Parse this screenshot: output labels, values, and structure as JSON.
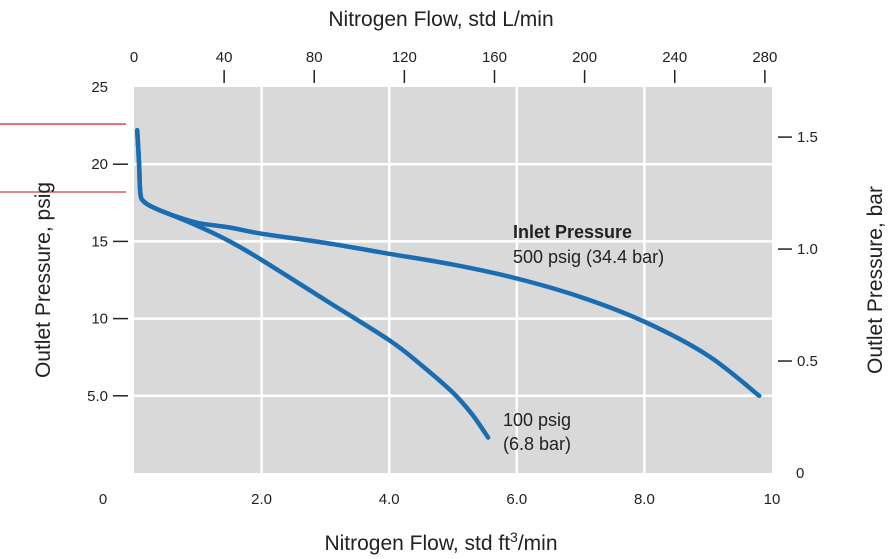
{
  "colors": {
    "plot_background": "#d9d9d9",
    "grid": "#ffffff",
    "curve": "#1b6db2",
    "annotation_line": "#d33a3a",
    "text": "#222222"
  },
  "chart_data": {
    "type": "line",
    "xlabel_bottom_prefix": "Nitrogen Flow, std ft",
    "xlabel_bottom_sup": "3",
    "xlabel_bottom_suffix": "/min",
    "xlabel_top": "Nitrogen Flow, std L/min",
    "ylabel_left": "Outlet Pressure, psig",
    "ylabel_right": "Outlet Pressure, bar",
    "xlim_bottom": [
      0,
      10
    ],
    "xlim_top": [
      0,
      283.17
    ],
    "ylim_left": [
      0,
      25
    ],
    "ylim_right": [
      0,
      1.7237
    ],
    "grid": true,
    "x_ticks_bottom": [
      {
        "value": 0,
        "label": "0"
      },
      {
        "value": 2,
        "label": "2.0"
      },
      {
        "value": 4,
        "label": "4.0"
      },
      {
        "value": 6,
        "label": "6.0"
      },
      {
        "value": 8,
        "label": "8.0"
      },
      {
        "value": 10,
        "label": "10"
      }
    ],
    "x_ticks_top": [
      {
        "value": 0,
        "label": "0"
      },
      {
        "value": 40,
        "label": "40"
      },
      {
        "value": 80,
        "label": "80"
      },
      {
        "value": 120,
        "label": "120"
      },
      {
        "value": 160,
        "label": "160"
      },
      {
        "value": 200,
        "label": "200"
      },
      {
        "value": 240,
        "label": "240"
      },
      {
        "value": 280,
        "label": "280"
      }
    ],
    "y_ticks_left": [
      {
        "value": 0,
        "label": "0"
      },
      {
        "value": 5,
        "label": "5.0"
      },
      {
        "value": 10,
        "label": "10"
      },
      {
        "value": 15,
        "label": "15"
      },
      {
        "value": 20,
        "label": "20"
      },
      {
        "value": 25,
        "label": "25"
      }
    ],
    "y_ticks_right": [
      {
        "value": 0,
        "label": "0"
      },
      {
        "value": 0.5,
        "label": "0.5"
      },
      {
        "value": 1.0,
        "label": "1.0"
      },
      {
        "value": 1.5,
        "label": "1.5"
      }
    ],
    "series": [
      {
        "label_line1": "Inlet Pressure",
        "label_line2": "500 psig (34.4 bar)",
        "points": [
          [
            0.05,
            22.2
          ],
          [
            0.08,
            20.0
          ],
          [
            0.1,
            18.1
          ],
          [
            0.15,
            17.6
          ],
          [
            0.3,
            17.2
          ],
          [
            0.6,
            16.7
          ],
          [
            1.0,
            16.2
          ],
          [
            1.5,
            15.9
          ],
          [
            2.0,
            15.5
          ],
          [
            3.0,
            14.9
          ],
          [
            4.0,
            14.2
          ],
          [
            5.0,
            13.5
          ],
          [
            6.0,
            12.6
          ],
          [
            7.0,
            11.4
          ],
          [
            8.0,
            9.8
          ],
          [
            9.0,
            7.6
          ],
          [
            9.8,
            5.0
          ]
        ]
      },
      {
        "label_line1": "100 psig",
        "label_line2": "(6.8 bar)",
        "points": [
          [
            0.05,
            22.2
          ],
          [
            0.08,
            20.0
          ],
          [
            0.1,
            18.1
          ],
          [
            0.15,
            17.6
          ],
          [
            0.3,
            17.2
          ],
          [
            0.6,
            16.7
          ],
          [
            1.0,
            16.0
          ],
          [
            1.5,
            15.0
          ],
          [
            2.0,
            13.8
          ],
          [
            3.0,
            11.2
          ],
          [
            4.0,
            8.6
          ],
          [
            4.5,
            7.0
          ],
          [
            5.0,
            5.2
          ],
          [
            5.3,
            3.8
          ],
          [
            5.55,
            2.3
          ]
        ]
      }
    ],
    "annotation_lines_y": [
      22.6,
      18.2
    ]
  }
}
